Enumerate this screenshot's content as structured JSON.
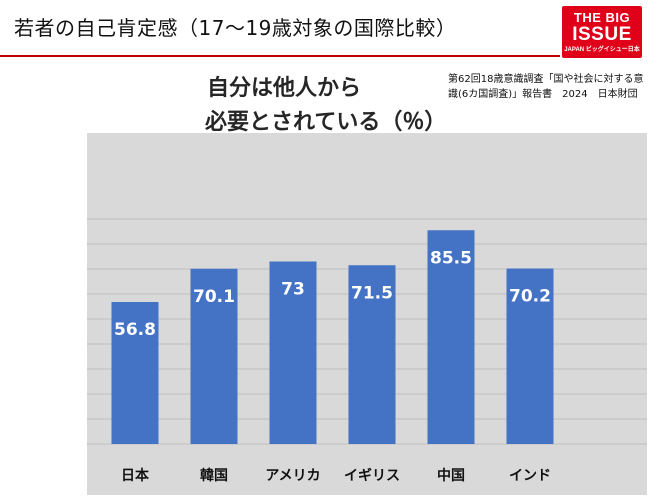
{
  "page": {
    "title": "若者の自己肯定感（17〜19歳対象の国際比較）",
    "logo": {
      "line1": "THE BIG",
      "line2": "ISSUE",
      "line3": "JAPAN ビッグイシュー日本"
    },
    "source_lines": [
      "第62回18歳意識調査「国や社会に対する意",
      "識(6カ国調査)」報告書　2024　日本財団"
    ]
  },
  "chart_data": {
    "type": "bar",
    "title_lines": [
      "自分は他人から",
      "必要とされている（％）"
    ],
    "categories": [
      "日本",
      "韓国",
      "アメリカ",
      "イギリス",
      "中国",
      "インド"
    ],
    "values": [
      56.8,
      70.1,
      73,
      71.5,
      85.5,
      70.2
    ],
    "value_labels": [
      "56.8",
      "70.1",
      "73",
      "71.5",
      "85.5",
      "70.2"
    ],
    "ylim": [
      0,
      90
    ],
    "grid": true,
    "bar_color": "#4472c4",
    "plot_background": "#d9d9d9",
    "gridline_color": "#bfbfbf",
    "label_color": "#ffffff"
  }
}
